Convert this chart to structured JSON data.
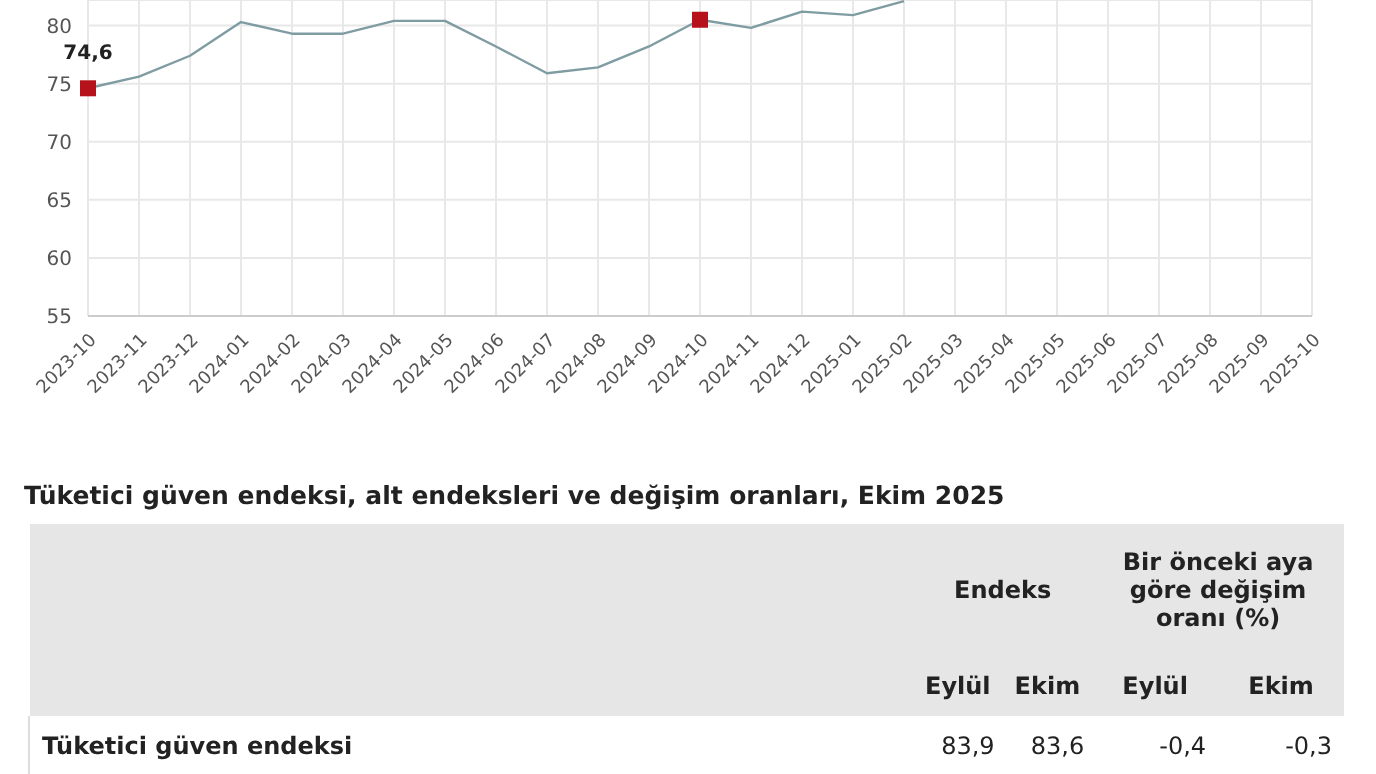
{
  "chart_data": {
    "type": "line",
    "categories": [
      "2023-10",
      "2023-11",
      "2023-12",
      "2024-01",
      "2024-02",
      "2024-03",
      "2024-04",
      "2024-05",
      "2024-06",
      "2024-07",
      "2024-08",
      "2024-09",
      "2024-10",
      "2024-11",
      "2024-12",
      "2025-01",
      "2025-02",
      "2025-03",
      "2025-04",
      "2025-05",
      "2025-06",
      "2025-07",
      "2025-08",
      "2025-09",
      "2025-10"
    ],
    "series": [
      {
        "color": "#7f9ca3",
        "marker": "none",
        "values": [
          74.6,
          75.6,
          77.4,
          80.3,
          79.3,
          79.3,
          80.4,
          80.4,
          78.2,
          75.9,
          76.4,
          78.2,
          80.5,
          79.8,
          81.2,
          80.9,
          82.1,
          null,
          null,
          null,
          null,
          null,
          null,
          null,
          null
        ]
      },
      {
        "type": "scatter",
        "color": "#b5121b",
        "marker": "square",
        "values": [
          74.6,
          null,
          null,
          null,
          null,
          null,
          null,
          null,
          null,
          null,
          null,
          null,
          80.5,
          null,
          null,
          null,
          null,
          null,
          null,
          null,
          null,
          null,
          null,
          null,
          null
        ],
        "value_labels": [
          "74,6",
          null,
          null,
          null,
          null,
          null,
          null,
          null,
          null,
          null,
          null,
          null,
          null,
          null,
          null,
          null,
          null,
          null,
          null,
          null,
          null,
          null,
          null,
          null,
          null
        ]
      }
    ],
    "ylim": [
      55,
      82.2
    ],
    "yticks": [
      55,
      60,
      65,
      70,
      75,
      80
    ],
    "grid": true,
    "legend": false,
    "annotations": [
      "Tüketici güven endeksi, alt endeksleri ve değişim oranları, Ekim 2025",
      "Endeks",
      "Bir önceki aya göre değişim oranı (%)",
      "Eylül",
      "Ekim",
      "Eylül",
      "Ekim",
      "Tüketici güven endeksi",
      "83,9",
      "83,6",
      "-0,4",
      "-0,3"
    ]
  }
}
